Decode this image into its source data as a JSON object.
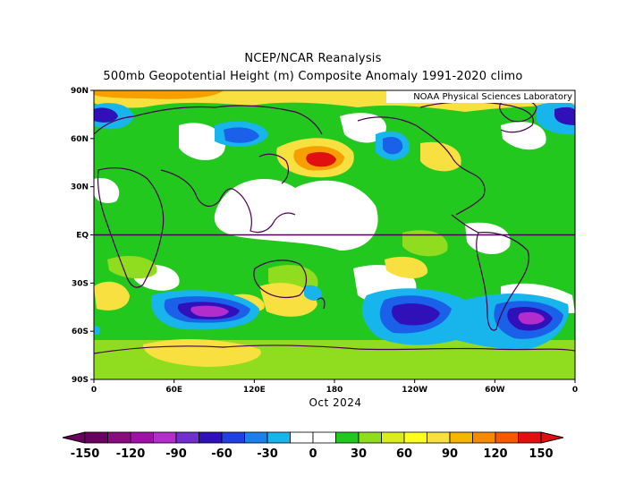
{
  "titles": {
    "line1": "NCEP/NCAR Reanalysis",
    "line2": "500mb Geopotential Height (m) Composite Anomaly 1991-2020 climo"
  },
  "credit": "NOAA Physical Sciences Laboratory",
  "time_label": "Oct 2024",
  "map": {
    "lat_ticks": [
      "90N",
      "60N",
      "30N",
      "EQ",
      "30S",
      "60S",
      "90S"
    ],
    "lon_ticks": [
      "0",
      "60E",
      "120E",
      "180",
      "120W",
      "60W",
      "0"
    ]
  },
  "colorbar": {
    "labels": [
      "-150",
      "-120",
      "-90",
      "-60",
      "-30",
      "0",
      "30",
      "60",
      "90",
      "120",
      "150"
    ],
    "colors": [
      "#6a0060",
      "#8a0a80",
      "#a010a8",
      "#b32dcc",
      "#7030d0",
      "#3010b8",
      "#2040e0",
      "#1a80ea",
      "#18b4ec",
      "#ffffff",
      "#ffffff",
      "#22c81e",
      "#90dc1e",
      "#d8ec20",
      "#ffff20",
      "#f7e040",
      "#f5b500",
      "#f58a00",
      "#f55a00",
      "#e01010"
    ]
  },
  "colors": {
    "green": "#22c81e",
    "lime": "#90dc1e",
    "yellow": "#f7e040",
    "orange": "#f5a000",
    "red": "#e01010",
    "cyan": "#18b4ec",
    "blue": "#1a60e8",
    "darkblue": "#3010b8",
    "purple": "#b32dcc",
    "coast": "#4a0050"
  }
}
